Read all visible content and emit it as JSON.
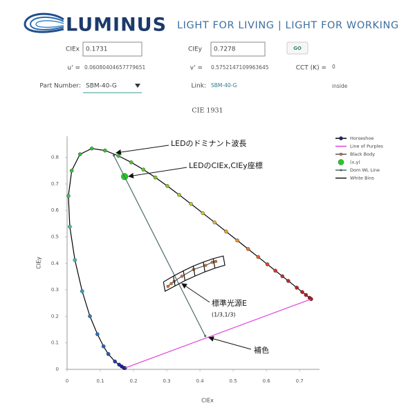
{
  "header": {
    "brand": "LUMINUS",
    "tagline": "LIGHT FOR LIVING | LIGHT FOR WORKING"
  },
  "form": {
    "ciex_label": "CIEx",
    "ciex_value": "0.1731",
    "ciey_label": "CIEy",
    "ciey_value": "0.7278",
    "go": "GO",
    "u_label": "u' =",
    "u_value": "0.06080404657779651",
    "v_label": "v' =",
    "v_value": "0.5752147109963645",
    "cct_label": "CCT (K) =",
    "cct_value": "0",
    "part_label": "Part Number:",
    "part_value": "SBM-40-G",
    "link_label": "Link:",
    "link_value": "SBM-40-G",
    "status": "inside"
  },
  "chart_data": {
    "type": "scatter",
    "title": "CIE 1931",
    "x_label": "CIEx",
    "y_label": "CIEy",
    "xlim": [
      0,
      0.76
    ],
    "ylim": [
      0,
      0.88
    ],
    "xticks": [
      0,
      0.1,
      0.2,
      0.3,
      0.4,
      0.5,
      0.6,
      0.7
    ],
    "yticks": [
      0,
      0.1,
      0.2,
      0.3,
      0.4,
      0.5,
      0.6,
      0.7,
      0.8
    ],
    "grid": false,
    "legend": "top-right",
    "series": [
      {
        "name": "Horseshoe",
        "color": "#1a237e",
        "line_color": "#000000",
        "mode": "lines+markers",
        "marker": "medium",
        "x": [
          0.1741,
          0.1714,
          0.1644,
          0.1566,
          0.144,
          0.1241,
          0.1096,
          0.0913,
          0.0687,
          0.0454,
          0.0235,
          0.0082,
          0.0039,
          0.0139,
          0.0389,
          0.0743,
          0.1142,
          0.1547,
          0.1929,
          0.2296,
          0.2658,
          0.3016,
          0.3373,
          0.3731,
          0.4087,
          0.4441,
          0.4788,
          0.5125,
          0.5448,
          0.5752,
          0.6029,
          0.627,
          0.6482,
          0.6658,
          0.6915,
          0.7079,
          0.719,
          0.73,
          0.7347
        ],
        "y": [
          0.005,
          0.0051,
          0.0109,
          0.0177,
          0.0297,
          0.0578,
          0.0868,
          0.1327,
          0.2007,
          0.295,
          0.4127,
          0.5384,
          0.6548,
          0.7502,
          0.812,
          0.8338,
          0.8262,
          0.8059,
          0.7816,
          0.7543,
          0.7243,
          0.6923,
          0.6589,
          0.6245,
          0.5896,
          0.5547,
          0.5202,
          0.4866,
          0.4544,
          0.4242,
          0.3965,
          0.3725,
          0.3514,
          0.334,
          0.3083,
          0.292,
          0.2809,
          0.27,
          0.2653
        ],
        "point_colors": [
          "#1a1a8c",
          "#1a1a8c",
          "#1c1c96",
          "#1e28a0",
          "#2040b0",
          "#2656bc",
          "#2a62c0",
          "#2e70c4",
          "#3080c0",
          "#30a0c8",
          "#40b8c0",
          "#40c090",
          "#40c050",
          "#38c038",
          "#30c030",
          "#30c030",
          "#34c030",
          "#40c030",
          "#50c030",
          "#60c030",
          "#78c030",
          "#90c030",
          "#a8c030",
          "#c0c030",
          "#d0c030",
          "#e0b030",
          "#e0a030",
          "#e09030",
          "#e07830",
          "#e06030",
          "#d84830",
          "#d03830",
          "#c83030",
          "#c02828",
          "#c02020",
          "#b82020",
          "#b01c1c",
          "#a81818",
          "#a01818"
        ]
      },
      {
        "name": "Line of Purples",
        "color": "#e040e0",
        "mode": "lines",
        "x": [
          0.1741,
          0.7347
        ],
        "y": [
          0.005,
          0.2653
        ]
      },
      {
        "name": "Black Body",
        "color": "#d87030",
        "line_color": "#555555",
        "mode": "lines+markers",
        "marker": "small",
        "x": [
          0.4476,
          0.4369,
          0.4171,
          0.3805,
          0.3457,
          0.3221,
          0.3135,
          0.3036
        ],
        "y": [
          0.4074,
          0.4041,
          0.3927,
          0.3768,
          0.3516,
          0.3318,
          0.3237,
          0.3134
        ]
      },
      {
        "name": "(x,y)",
        "color": "#22cc22",
        "mode": "markers",
        "marker": "large",
        "x": [
          0.1731
        ],
        "y": [
          0.7278
        ]
      },
      {
        "name": "Dom WL Line",
        "color": "#4a6a6a",
        "mode": "lines+markers",
        "marker": "tiny",
        "x": [
          0.1405,
          0.4158
        ],
        "y": [
          0.8076,
          0.126
        ]
      },
      {
        "name": "White Bins",
        "color": "#111111",
        "mode": "lines",
        "x": [
          0.29,
          0.32,
          0.325,
          0.295,
          0.29,
          null,
          0.32,
          0.35,
          0.355,
          0.325,
          0.32,
          null,
          0.35,
          0.38,
          0.385,
          0.355,
          0.35,
          null,
          0.38,
          0.41,
          0.415,
          0.385,
          0.38,
          null,
          0.41,
          0.44,
          0.445,
          0.415,
          0.41,
          null,
          0.44,
          0.47,
          0.475,
          0.445,
          0.44
        ],
        "y": [
          0.33,
          0.352,
          0.315,
          0.295,
          0.33,
          null,
          0.352,
          0.372,
          0.335,
          0.315,
          0.352,
          null,
          0.372,
          0.39,
          0.352,
          0.335,
          0.372,
          null,
          0.39,
          0.405,
          0.368,
          0.352,
          0.39,
          null,
          0.405,
          0.418,
          0.382,
          0.368,
          0.405,
          null,
          0.418,
          0.428,
          0.393,
          0.382,
          0.418
        ]
      }
    ],
    "annotations": [
      "LEDのドミナント波長",
      "LEDのCIEx,CIEy座標",
      "標準光源E",
      "(1/3,1/3)",
      "補色"
    ]
  }
}
